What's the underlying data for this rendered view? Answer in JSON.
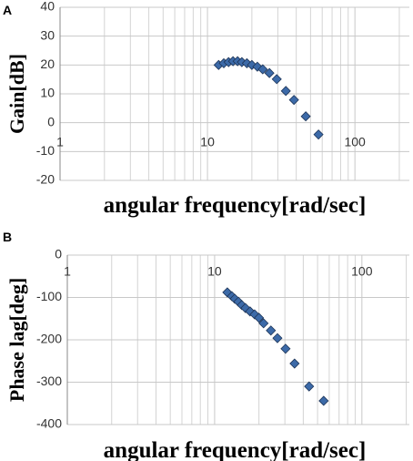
{
  "chart_data": [
    {
      "type": "scatter",
      "label": "A",
      "ylabel": "Gain[dB]",
      "xlabel": "angular frequency[rad/sec]",
      "x": [
        11.9,
        12.9,
        13.9,
        14.9,
        16,
        17.1,
        18.5,
        20,
        21.8,
        23.7,
        26.3,
        29.5,
        34,
        38.6,
        46.4,
        56.6
      ],
      "values": [
        20,
        20.6,
        21,
        21.3,
        21.3,
        21,
        20.6,
        20,
        19.4,
        18.5,
        17.2,
        15.1,
        11,
        7.9,
        2.2,
        -4.1
      ],
      "xlim": [
        1,
        234
      ],
      "xticks": [
        1,
        10,
        100
      ],
      "xlog": true,
      "xtick_at": 0,
      "ylim": [
        -20,
        40
      ],
      "yticks": [
        -20,
        -10,
        0,
        10,
        20,
        30,
        40
      ],
      "grid": true,
      "color": "#3c6aa8"
    },
    {
      "type": "scatter",
      "label": "B",
      "ylabel": "Phase lag[deg]",
      "xlabel": "angular frequency[rad/sec]",
      "x": [
        12.2,
        13.1,
        13.7,
        14.5,
        15.3,
        16.2,
        17.4,
        18.7,
        20,
        21.5,
        24.1,
        26.7,
        30.3,
        34.9,
        43.8,
        55
      ],
      "values": [
        -88,
        -97,
        -103,
        -110,
        -118,
        -125,
        -133,
        -140,
        -148,
        -161,
        -178,
        -196,
        -221,
        -256,
        -310,
        -344
      ],
      "xlim": [
        1,
        210
      ],
      "xticks": [
        1,
        10,
        100
      ],
      "xlog": true,
      "xtick_at": -40,
      "ylim": [
        -400,
        0
      ],
      "yticks": [
        -400,
        -300,
        -200,
        -100,
        0
      ],
      "grid": true,
      "color": "#3c6aa8"
    }
  ]
}
